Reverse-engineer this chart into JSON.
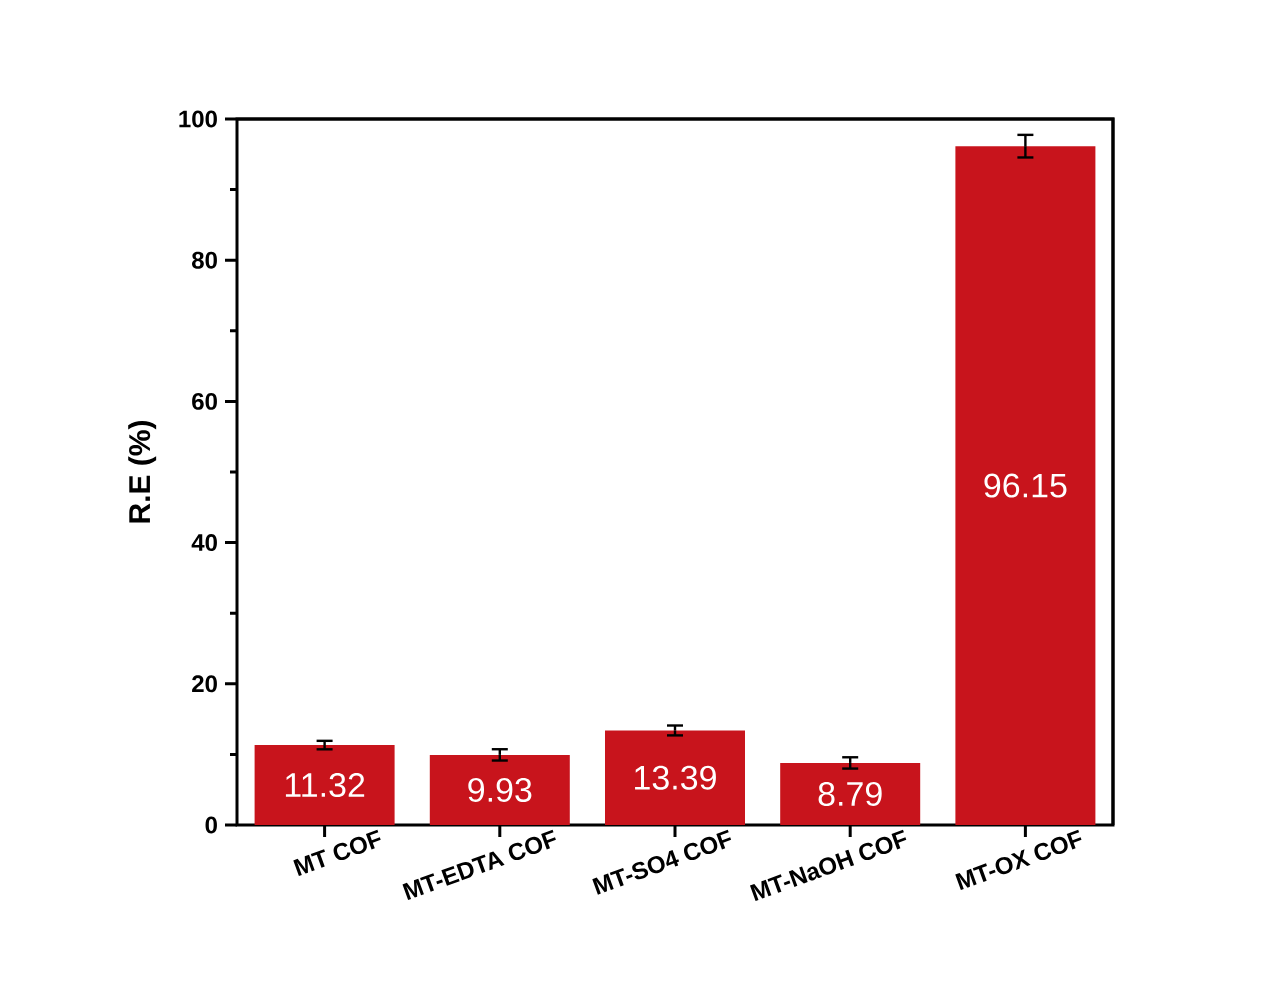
{
  "chart_data": {
    "type": "bar",
    "ylabel": "R.E (%)",
    "categories": [
      "MT COF",
      "MT-EDTA COF",
      "MT-SO4 COF",
      "MT-NaOH COF",
      "MT-OX COF"
    ],
    "values": [
      11.32,
      9.93,
      13.39,
      8.79,
      96.15
    ],
    "errors": [
      0.6,
      0.8,
      0.7,
      0.8,
      1.6
    ],
    "color": "#c8141c",
    "ylim": [
      0,
      100
    ],
    "yticks": [
      0,
      20,
      40,
      60,
      80,
      100
    ],
    "data_labels": true
  }
}
